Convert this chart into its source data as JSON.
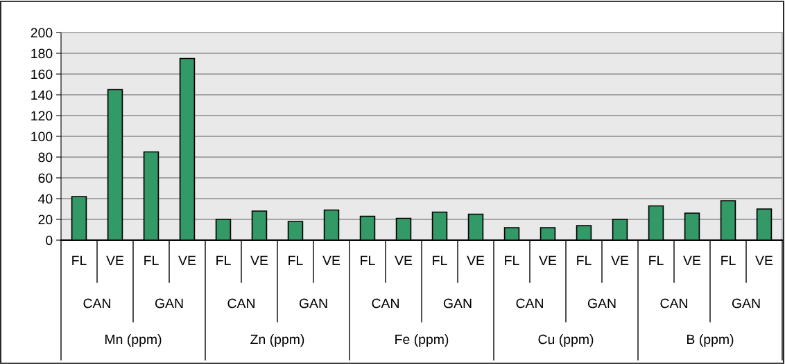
{
  "chart_data": {
    "type": "bar",
    "categories": [
      "FL",
      "VE",
      "FL",
      "VE",
      "FL",
      "VE",
      "FL",
      "VE",
      "FL",
      "VE",
      "FL",
      "VE",
      "FL",
      "VE",
      "FL",
      "VE",
      "FL",
      "VE",
      "FL",
      "VE"
    ],
    "values": [
      42,
      145,
      85,
      175,
      20,
      28,
      18,
      29,
      23,
      21,
      27,
      25,
      12,
      12,
      14,
      20,
      33,
      26,
      38,
      30
    ],
    "color": "#339966",
    "ylim": [
      0,
      200
    ],
    "yticks": [
      0,
      20,
      40,
      60,
      80,
      100,
      120,
      140,
      160,
      180,
      200
    ],
    "grid": "y",
    "legend": false,
    "annotations": [
      "CAN",
      "GAN",
      "CAN",
      "GAN",
      "CAN",
      "GAN",
      "CAN",
      "GAN",
      "CAN",
      "GAN",
      "Mn (ppm)",
      "Zn (ppm)",
      "Fe (ppm)",
      "Cu (ppm)",
      "B (ppm)"
    ]
  }
}
